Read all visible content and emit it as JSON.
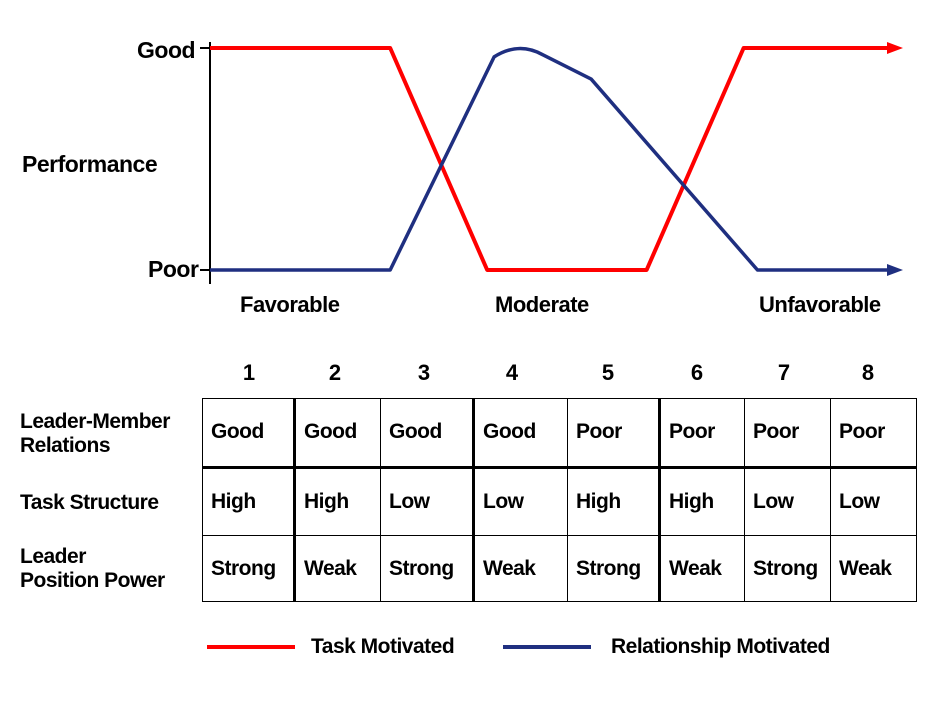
{
  "chart_data": {
    "type": "line",
    "ylabel": "Performance",
    "y_levels": [
      "Poor",
      "Good"
    ],
    "x_regions": [
      "Favorable",
      "Moderate",
      "Unfavorable"
    ],
    "situations": [
      "1",
      "2",
      "3",
      "4",
      "5",
      "6",
      "7",
      "8"
    ],
    "series": [
      {
        "name": "Task Motivated",
        "color": "#ff0000",
        "points": [
          [
            0,
            1
          ],
          [
            0.26,
            1
          ],
          [
            0.4,
            0
          ],
          [
            0.63,
            0
          ],
          [
            0.77,
            1
          ],
          [
            1.0,
            1
          ]
        ]
      },
      {
        "name": "Relationship Motivated",
        "color": "#1f2f80",
        "points": [
          [
            0,
            0
          ],
          [
            0.26,
            0
          ],
          [
            0.41,
            0.96
          ],
          [
            0.48,
            0.97
          ],
          [
            0.55,
            0.86
          ],
          [
            0.79,
            0
          ],
          [
            1.0,
            0
          ]
        ]
      }
    ]
  },
  "table": {
    "rows": [
      {
        "label": "Leader-Member Relations",
        "label_lines": [
          "Leader-Member",
          "Relations"
        ],
        "cells": [
          "Good",
          "Good",
          "Good",
          "Good",
          "Poor",
          "Poor",
          "Poor",
          "Poor"
        ]
      },
      {
        "label": "Task Structure",
        "label_lines": [
          "Task Structure"
        ],
        "cells": [
          "High",
          "High",
          "Low",
          "Low",
          "High",
          "High",
          "Low",
          "Low"
        ]
      },
      {
        "label": "Leader Position Power",
        "label_lines": [
          "Leader",
          "Position Power"
        ],
        "cells": [
          "Strong",
          "Weak",
          "Strong",
          "Weak",
          "Strong",
          "Weak",
          "Strong",
          "Weak"
        ]
      }
    ]
  },
  "legend": {
    "task": {
      "label": "Task Motivated",
      "color": "#ff0000"
    },
    "relationship": {
      "label": "Relationship Motivated",
      "color": "#1f2f80"
    }
  }
}
